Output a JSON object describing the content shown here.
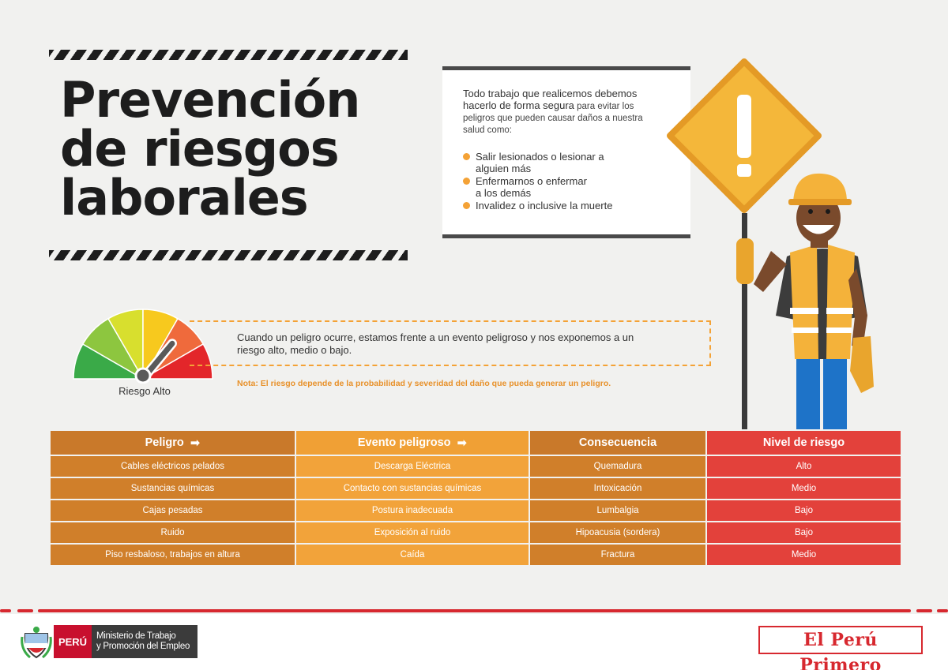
{
  "title": {
    "line1": "Prevención",
    "line2": "de riesgos",
    "line3": "laborales"
  },
  "infobox": {
    "intro_line1": "Todo trabajo que realicemos debemos",
    "intro_line2": "hacerlo de forma segura",
    "intro_line2_rest": " para evitar los",
    "intro_line3": "peligros que pueden causar daños a nuestra",
    "intro_line4": "salud como:",
    "bullets": [
      {
        "line1": "Salir lesionados o lesionar a",
        "line2": "alguien más"
      },
      {
        "line1": "Enfermarnos o enfermar",
        "line2": "a los demás"
      },
      {
        "line1": "Invalidez o inclusive la muerte",
        "line2": ""
      }
    ],
    "bullet_color": "#f4a236"
  },
  "gauge": {
    "label": "Riesgo Alto",
    "level": 0.72,
    "colors": [
      "#3aaa48",
      "#8dc63f",
      "#d8df2e",
      "#f7c91e",
      "#ef6a3c",
      "#e3262a"
    ]
  },
  "explanation": {
    "line1": "Cuando un peligro ocurre, estamos frente a un evento peligroso y nos exponemos a un",
    "line2": "riesgo alto, medio o bajo.",
    "note": "Nota: El riesgo depende de la probabilidad y severidad del daño que pueda generar un peligro."
  },
  "table": {
    "headers": [
      "Peligro",
      "Evento peligroso",
      "Consecuencia",
      "Nivel de riesgo"
    ],
    "rows": [
      [
        "Cables eléctricos pelados",
        "Descarga Eléctrica",
        "Quemadura",
        "Alto"
      ],
      [
        "Sustancias químicas",
        "Contacto con sustancias químicas",
        "Intoxicación",
        "Medio"
      ],
      [
        "Cajas pesadas",
        "Postura inadecuada",
        "Lumbalgia",
        "Bajo"
      ],
      [
        "Ruido",
        "Exposición al ruido",
        "Hipoacusia (sordera)",
        "Bajo"
      ],
      [
        "Piso resbaloso, trabajos en altura",
        "Caída",
        "Fractura",
        "Medio"
      ]
    ]
  },
  "footer": {
    "peru": "PERÚ",
    "ministry_line1": "Ministerio de Trabajo",
    "ministry_line2": "y Promoción del Empleo",
    "brand": "El Perú Primero",
    "accent": "#d7282f"
  }
}
